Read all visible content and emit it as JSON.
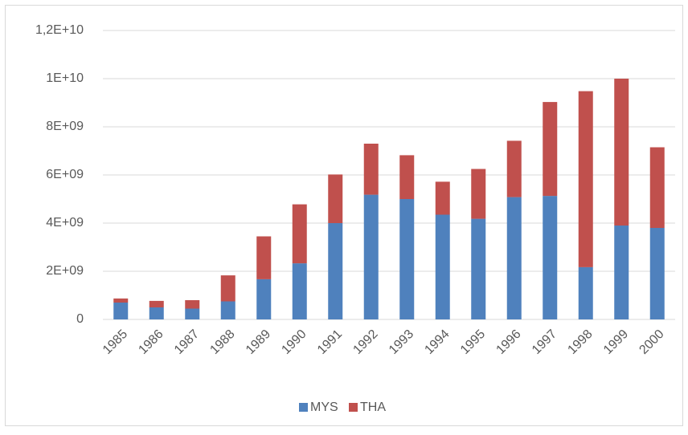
{
  "chart_data": {
    "type": "stacked_bar",
    "categories": [
      "1985",
      "1986",
      "1987",
      "1988",
      "1989",
      "1990",
      "1991",
      "1992",
      "1993",
      "1994",
      "1995",
      "1996",
      "1997",
      "1998",
      "1999",
      "2000"
    ],
    "series": [
      {
        "name": "MYS",
        "color": "#4f81bd",
        "values": [
          700000000,
          500000000,
          450000000,
          750000000,
          1670000000,
          2330000000,
          4000000000,
          5180000000,
          5000000000,
          4350000000,
          4180000000,
          5080000000,
          5130000000,
          2170000000,
          3900000000,
          3800000000
        ]
      },
      {
        "name": "THA",
        "color": "#c0504d",
        "values": [
          170000000,
          270000000,
          350000000,
          1080000000,
          1780000000,
          2450000000,
          2020000000,
          2120000000,
          1820000000,
          1370000000,
          2070000000,
          2340000000,
          3900000000,
          7310000000,
          6100000000,
          3350000000
        ]
      }
    ],
    "ylim": [
      0,
      12000000000
    ],
    "yticks": [
      0,
      {
        "value": 2000000000,
        "label": "2E+09"
      },
      {
        "value": 4000000000,
        "label": "4E+09"
      },
      {
        "value": 6000000000,
        "label": "6E+09"
      },
      {
        "value": 8000000000,
        "label": "8E+09"
      },
      {
        "value": 10000000000,
        "label": "1E+10"
      },
      {
        "value": 12000000000,
        "label": "1,2E+10"
      }
    ],
    "grid": true,
    "legend": "bottom"
  }
}
